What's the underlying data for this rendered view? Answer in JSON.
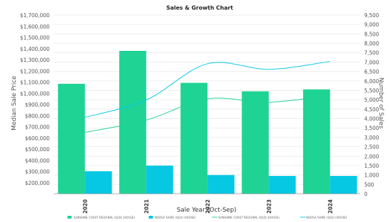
{
  "chart_data": {
    "type": "bar",
    "title": "Sales & Growth Chart",
    "xlabel": "Sale Year (Oct-Sep)",
    "ylabel": "Median Sale Price",
    "y2label": "Number of Sales",
    "categories": [
      "2020",
      "2021",
      "2022",
      "2023",
      "2024"
    ],
    "ylim": [
      100000,
      1700000
    ],
    "y2lim": [
      0,
      9500
    ],
    "yticks": [
      "$1,700,000",
      "$1,600,000",
      "$1,500,000",
      "$1,400,000",
      "$1,300,000",
      "$1,200,000",
      "$1,100,000",
      "$1,000,000",
      "$900,000",
      "$800,000",
      "$700,000",
      "$600,000",
      "$500,000",
      "$400,000",
      "$300,000",
      "$200,000"
    ],
    "ytick_values": [
      1700000,
      1600000,
      1500000,
      1400000,
      1300000,
      1200000,
      1100000,
      1000000,
      900000,
      800000,
      700000,
      600000,
      500000,
      400000,
      300000,
      200000
    ],
    "y2ticks": [
      "9,500",
      "9,000",
      "8,500",
      "8,000",
      "7,500",
      "7,000",
      "6,500",
      "6,000",
      "5,500",
      "5,000",
      "4,500",
      "4,000",
      "3,500",
      "3,000",
      "2,500",
      "2,000",
      "1,500",
      "1,000",
      "500",
      "0"
    ],
    "y2tick_values": [
      9500,
      9000,
      8500,
      8000,
      7500,
      7000,
      6500,
      6000,
      5500,
      5000,
      4500,
      4000,
      3500,
      3000,
      2500,
      2000,
      1500,
      1000,
      500,
      0
    ],
    "grid": true,
    "legend_position": "bottom",
    "series": [
      {
        "name": "SUNSHINE COAST REGIONAL (QLD) (HOUSE)",
        "kind": "bar",
        "axis": "y2",
        "color": "#1fd394",
        "values": [
          5850,
          7600,
          5900,
          5450,
          5550
        ]
      },
      {
        "name": "NOOSA SHIRE (QLD) (HOUSE)",
        "kind": "bar",
        "axis": "y2",
        "color": "#07c8e3",
        "values": [
          1200,
          1500,
          1000,
          950,
          950
        ]
      },
      {
        "name": "SUNSHINE COAST REGIONAL (QLD) (HOUSE)",
        "kind": "line",
        "axis": "y",
        "color": "#1fd394",
        "values": [
          650000,
          760000,
          950000,
          920000,
          980000
        ]
      },
      {
        "name": "NOOSA SHIRE (QLD) (HOUSE)",
        "kind": "line",
        "axis": "y",
        "color": "#07c8e3",
        "values": [
          785000,
          940000,
          1265000,
          1215000,
          1285000
        ]
      }
    ]
  }
}
